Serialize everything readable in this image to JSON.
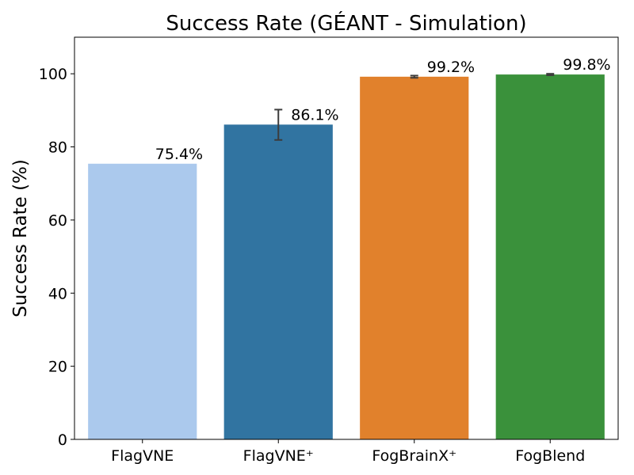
{
  "chart_data": {
    "type": "bar",
    "title": "Success Rate (GÉANT - Simulation)",
    "xlabel": "",
    "ylabel": "Success Rate (%)",
    "ylim": [
      0,
      110
    ],
    "yticks": [
      0,
      20,
      40,
      60,
      80,
      100
    ],
    "grid": false,
    "categories": [
      "FlagVNE",
      "FlagVNE⁺",
      "FogBrainX⁺",
      "FogBlend"
    ],
    "values": [
      75.4,
      86.1,
      99.2,
      99.8
    ],
    "error_low": [
      75.4,
      81.9,
      98.9,
      99.6
    ],
    "error_high": [
      75.4,
      90.2,
      99.5,
      100.0
    ],
    "data_labels": [
      "75.4%",
      "86.1%",
      "99.2%",
      "99.8%"
    ],
    "colors": [
      "#abc9ed",
      "#3174a1",
      "#e1812c",
      "#3a913b"
    ]
  }
}
